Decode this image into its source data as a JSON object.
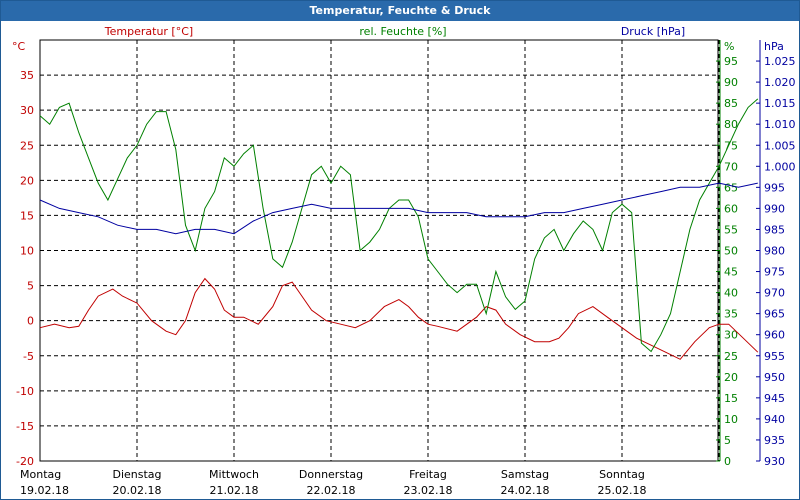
{
  "window": {
    "title": "Temperatur, Feuchte & Druck"
  },
  "chart_data": {
    "type": "line",
    "legend": {
      "temperature": "Temperatur [°C]",
      "humidity": "rel. Feuchte [%]",
      "pressure": "Druck [hPa]"
    },
    "colors": {
      "temperature": "#c00000",
      "humidity": "#008000",
      "pressure": "#0000a0",
      "title_bar": "#2a6aab",
      "grid": "#000000"
    },
    "axes": {
      "left": {
        "unit": "°C",
        "range": [
          -20,
          40
        ],
        "ticks": [
          "35",
          "30",
          "25",
          "20",
          "15",
          "10",
          "5",
          "0",
          "-5",
          "-10",
          "-15",
          "-20"
        ]
      },
      "middle": {
        "unit": "%",
        "range": [
          0,
          100
        ],
        "ticks": [
          "95",
          "90",
          "85",
          "80",
          "75",
          "70",
          "65",
          "60",
          "55",
          "50",
          "45",
          "40",
          "35",
          "30",
          "25",
          "20",
          "15",
          "10",
          "5",
          "0"
        ]
      },
      "right": {
        "unit": "hPa",
        "range": [
          930,
          1030
        ],
        "ticks": [
          "1.025",
          "1.020",
          "1.015",
          "1.010",
          "1.005",
          "1.000",
          "995",
          "990",
          "985",
          "980",
          "975",
          "970",
          "965",
          "960",
          "955",
          "950",
          "945",
          "940",
          "935",
          "930"
        ]
      }
    },
    "x_labels": [
      {
        "day": "Montag",
        "date": "19.02.18"
      },
      {
        "day": "Dienstag",
        "date": "20.02.18"
      },
      {
        "day": "Mittwoch",
        "date": "21.02.18"
      },
      {
        "day": "Donnerstag",
        "date": "22.02.18"
      },
      {
        "day": "Freitag",
        "date": "23.02.18"
      },
      {
        "day": "Samstag",
        "date": "24.02.18"
      },
      {
        "day": "Sonntag",
        "date": "25.02.18"
      }
    ],
    "x_range_days": [
      0,
      7.5
    ],
    "grid": true,
    "series": [
      {
        "name": "Temperatur [°C]",
        "axis": "left",
        "color": "#c00000",
        "x": [
          0,
          0.15,
          0.3,
          0.4,
          0.5,
          0.6,
          0.75,
          0.85,
          1.0,
          1.15,
          1.3,
          1.4,
          1.5,
          1.6,
          1.7,
          1.8,
          1.9,
          2.0,
          2.1,
          2.25,
          2.4,
          2.5,
          2.6,
          2.7,
          2.8,
          2.95,
          3.1,
          3.25,
          3.4,
          3.55,
          3.7,
          3.8,
          3.9,
          4.0,
          4.1,
          4.3,
          4.5,
          4.6,
          4.7,
          4.8,
          4.95,
          5.1,
          5.25,
          5.35,
          5.45,
          5.55,
          5.7,
          5.85,
          6.0,
          6.15,
          6.3,
          6.45,
          6.6,
          6.75,
          6.9,
          7.0,
          7.1,
          7.25,
          7.4
        ],
        "y": [
          -1,
          -0.5,
          -1,
          -0.8,
          1.5,
          3.5,
          4.5,
          3.5,
          2.5,
          0,
          -1.5,
          -2,
          0,
          4,
          6,
          4.5,
          1.5,
          0.5,
          0.5,
          -0.5,
          2,
          5,
          5.5,
          3.5,
          1.5,
          0,
          -0.5,
          -1,
          0,
          2,
          3,
          2,
          0.5,
          -0.5,
          -0.8,
          -1.5,
          0.5,
          2,
          1.5,
          -0.5,
          -2,
          -3,
          -3,
          -2.5,
          -1,
          1,
          2,
          0.5,
          -1,
          -2.5,
          -3.5,
          -4.5,
          -5.5,
          -3,
          -1,
          -0.5,
          -0.5,
          -2.5,
          -4.5
        ]
      },
      {
        "name": "rel. Feuchte [%]",
        "axis": "middle",
        "color": "#008000",
        "x": [
          0,
          0.1,
          0.2,
          0.3,
          0.4,
          0.5,
          0.6,
          0.7,
          0.8,
          0.9,
          1.0,
          1.1,
          1.2,
          1.3,
          1.4,
          1.5,
          1.6,
          1.7,
          1.8,
          1.9,
          2.0,
          2.1,
          2.2,
          2.3,
          2.4,
          2.5,
          2.6,
          2.7,
          2.8,
          2.9,
          3.0,
          3.1,
          3.2,
          3.3,
          3.4,
          3.5,
          3.6,
          3.7,
          3.8,
          3.9,
          4.0,
          4.1,
          4.2,
          4.3,
          4.4,
          4.5,
          4.6,
          4.7,
          4.8,
          4.9,
          5.0,
          5.1,
          5.2,
          5.3,
          5.4,
          5.5,
          5.6,
          5.7,
          5.8,
          5.9,
          6.0,
          6.1,
          6.2,
          6.3,
          6.4,
          6.5,
          6.6,
          6.7,
          6.8,
          6.9,
          7.0,
          7.1,
          7.2,
          7.3,
          7.4
        ],
        "y": [
          82,
          80,
          84,
          85,
          78,
          72,
          66,
          62,
          67,
          72,
          75,
          80,
          83,
          83,
          74,
          56,
          50,
          60,
          64,
          72,
          70,
          73,
          75,
          60,
          48,
          46,
          52,
          60,
          68,
          70,
          66,
          70,
          68,
          50,
          52,
          55,
          60,
          62,
          62,
          58,
          48,
          45,
          42,
          40,
          42,
          42,
          35,
          45,
          39,
          36,
          38,
          48,
          53,
          55,
          50,
          54,
          57,
          55,
          50,
          59,
          61,
          59,
          28,
          26,
          30,
          35,
          45,
          55,
          62,
          66,
          70,
          75,
          80,
          84,
          86
        ]
      },
      {
        "name": "Druck [hPa]",
        "axis": "right",
        "color": "#0000a0",
        "x": [
          0,
          0.2,
          0.4,
          0.6,
          0.8,
          1.0,
          1.2,
          1.4,
          1.6,
          1.8,
          2.0,
          2.2,
          2.4,
          2.6,
          2.8,
          3.0,
          3.2,
          3.4,
          3.6,
          3.8,
          4.0,
          4.2,
          4.4,
          4.6,
          4.8,
          5.0,
          5.2,
          5.4,
          5.6,
          5.8,
          6.0,
          6.2,
          6.4,
          6.6,
          6.8,
          7.0,
          7.2,
          7.4
        ],
        "y": [
          992,
          990,
          989,
          988,
          986,
          985,
          985,
          984,
          985,
          985,
          984,
          987,
          989,
          990,
          991,
          990,
          990,
          990,
          990,
          990,
          989,
          989,
          989,
          988,
          988,
          988,
          989,
          989,
          990,
          991,
          992,
          993,
          994,
          995,
          995,
          996,
          995,
          996
        ]
      }
    ]
  }
}
